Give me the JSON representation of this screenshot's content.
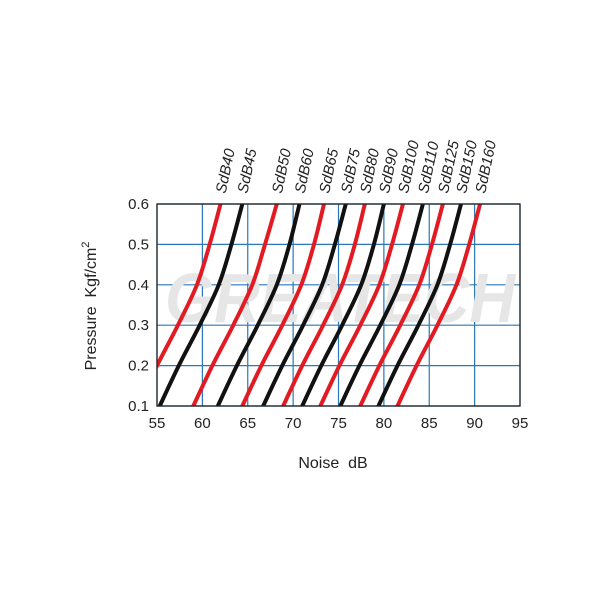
{
  "watermark": "GREATECH",
  "colors": {
    "red": "#e21b23",
    "black": "#111111",
    "grid": "#2a78b8"
  },
  "chart_data": {
    "type": "line",
    "xlabel": "Noise  dB",
    "ylabel": "Pressure  Kgf/cm",
    "ylabel_sup": "2",
    "xlim": [
      55,
      95
    ],
    "ylim": [
      0.1,
      0.6
    ],
    "xticks": [
      "55",
      "60",
      "65",
      "70",
      "75",
      "80",
      "85",
      "90",
      "95"
    ],
    "yticks": [
      "0.1",
      "0.2",
      "0.3",
      "0.4",
      "0.5",
      "0.6"
    ],
    "grid": true,
    "legend": "curve labels above top edge",
    "y": [
      0.1,
      0.2,
      0.3,
      0.4,
      0.5,
      0.6
    ],
    "series": [
      {
        "name": "SdB40",
        "color": "red",
        "x": [
          52.9,
          55.0,
          57.3,
          59.4,
          60.8,
          62.0
        ]
      },
      {
        "name": "SdB45",
        "color": "black",
        "x": [
          55.3,
          57.4,
          59.7,
          61.8,
          63.2,
          64.4
        ]
      },
      {
        "name": "SdB50",
        "color": "red",
        "x": [
          59.0,
          61.1,
          63.4,
          65.5,
          66.9,
          68.2
        ]
      },
      {
        "name": "SdB60",
        "color": "black",
        "x": [
          61.7,
          63.8,
          66.1,
          68.2,
          69.6,
          70.7
        ]
      },
      {
        "name": "SdB65",
        "color": "red",
        "x": [
          64.4,
          66.5,
          68.8,
          70.9,
          72.3,
          73.4
        ]
      },
      {
        "name": "SdB75",
        "color": "black",
        "x": [
          66.7,
          68.8,
          71.1,
          73.2,
          74.6,
          75.8
        ]
      },
      {
        "name": "SdB80",
        "color": "red",
        "x": [
          68.9,
          71.0,
          73.3,
          75.4,
          76.8,
          77.9
        ]
      },
      {
        "name": "SdB90",
        "color": "black",
        "x": [
          71.0,
          73.1,
          75.4,
          77.5,
          78.9,
          80.0
        ]
      },
      {
        "name": "SdB100",
        "color": "red",
        "x": [
          73.0,
          75.1,
          77.4,
          79.5,
          80.9,
          82.1
        ]
      },
      {
        "name": "SdB110",
        "color": "black",
        "x": [
          75.2,
          77.3,
          79.6,
          81.7,
          83.1,
          84.3
        ]
      },
      {
        "name": "SdB125",
        "color": "red",
        "x": [
          77.4,
          79.5,
          81.8,
          83.9,
          85.3,
          86.5
        ]
      },
      {
        "name": "SdB150",
        "color": "black",
        "x": [
          79.4,
          81.5,
          83.8,
          85.9,
          87.3,
          88.5
        ]
      },
      {
        "name": "SdB160",
        "color": "red",
        "x": [
          81.5,
          83.6,
          85.9,
          88.0,
          89.4,
          90.6
        ]
      }
    ]
  }
}
